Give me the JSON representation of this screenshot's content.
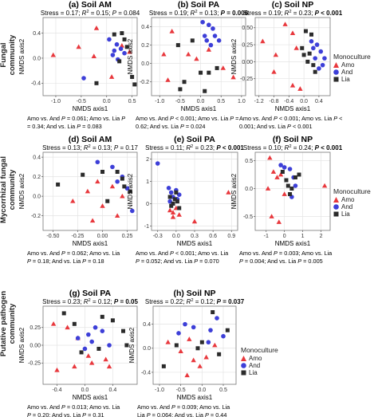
{
  "figure": {
    "row_labels": [
      "Fungal community",
      "Mycorrhizal fungal community",
      "Putative pathogen community"
    ],
    "legend": {
      "title": "Monoculture",
      "items": [
        {
          "label": "Amo",
          "color": "#e8383d",
          "shape": "triangle"
        },
        {
          "label": "And",
          "color": "#3d3fd8",
          "shape": "circle"
        },
        {
          "label": "Lia",
          "color": "#2b2b2b",
          "shape": "square"
        }
      ]
    }
  },
  "chart_data": [
    {
      "id": "a",
      "type": "scatter",
      "title": "(a) Soil AM",
      "stats": {
        "pre": "Stress = 0.17; ",
        "rlabel": "R",
        "rsup": "2",
        "rval": " = 0.15; ",
        "plabel": "P",
        "pval": " = 0.084",
        "pbold": false
      },
      "xlabel": "NMDS axis1",
      "ylabel": "NMDS axis2",
      "xlim": [
        -1.25,
        0.6
      ],
      "ylim": [
        -0.6,
        0.65
      ],
      "xticks": [
        -1.0,
        -0.5,
        0.0,
        0.5
      ],
      "xticklabels": [
        "-1.0",
        "-0.5",
        "0.0",
        "0.5"
      ],
      "yticks": [
        -0.4,
        0.0,
        0.4
      ],
      "yticklabels": [
        "-0.4",
        "0.0",
        "0.4"
      ],
      "note": [
        "Amo vs. And P = 0.061; Amo vs. Lia P",
        "= 0.34; And vs. Lia P = 0.083"
      ],
      "series": [
        {
          "name": "Amo",
          "x": [
            -1.05,
            -0.55,
            -0.2,
            0.3,
            -0.25,
            0.45,
            0.1
          ],
          "y": [
            0.05,
            0.18,
            0.48,
            0.2,
            0.03,
            0.1,
            -0.3
          ]
        },
        {
          "name": "And",
          "x": [
            0.05,
            0.2,
            0.28,
            0.15,
            0.35,
            0.22,
            -0.45,
            0.12
          ],
          "y": [
            0.3,
            0.22,
            0.15,
            0.12,
            0.08,
            -0.02,
            -0.32,
            0.05
          ]
        },
        {
          "name": "Lia",
          "x": [
            0.15,
            0.3,
            0.35,
            0.4,
            0.25,
            0.5,
            -0.2,
            0.55
          ],
          "y": [
            0.38,
            0.4,
            0.3,
            0.18,
            -0.05,
            -0.3,
            -0.4,
            -0.42
          ]
        }
      ]
    },
    {
      "id": "b",
      "type": "scatter",
      "title": "(b) Soil PA",
      "stats": {
        "pre": "Stress = 0.19; ",
        "rlabel": "R",
        "rsup": "2",
        "rval": " = 0.13; ",
        "plabel": "P",
        "pval": " = 0.006",
        "pbold": true
      },
      "xlabel": "NMDS axis1",
      "ylabel": "NMDS axis2",
      "xlim": [
        -1.2,
        1.1
      ],
      "ylim": [
        -0.35,
        0.5
      ],
      "xticks": [
        -1.0,
        -0.5,
        0.0,
        0.5,
        1.0
      ],
      "xticklabels": [
        "-1.0",
        "-0.5",
        "0.0",
        "0.5",
        "1.0"
      ],
      "yticks": [
        -0.2,
        0.0,
        0.2,
        0.4
      ],
      "yticklabels": [
        "-0.2",
        "0.0",
        "0.2",
        "0.4"
      ],
      "note": [
        "Amo vs. And P < 0.001; Amo vs. Lia P =",
        "0.62; And vs. Lia P = 0.024"
      ],
      "series": [
        {
          "name": "Amo",
          "x": [
            -0.7,
            -0.9,
            -0.3,
            -0.1,
            0.2,
            0.55,
            0.8,
            -0.8
          ],
          "y": [
            0.35,
            0.1,
            0.1,
            0.05,
            0.15,
            -0.05,
            -0.15,
            -0.18
          ]
        },
        {
          "name": "And",
          "x": [
            0.05,
            0.2,
            0.3,
            0.35,
            0.1,
            0.45,
            0.25,
            0.15
          ],
          "y": [
            0.45,
            0.42,
            0.38,
            0.3,
            0.3,
            0.25,
            0.2,
            0.25
          ]
        },
        {
          "name": "Lia",
          "x": [
            -0.55,
            -0.2,
            0.0,
            0.2,
            0.4,
            -0.4,
            -0.5,
            0.1
          ],
          "y": [
            0.2,
            0.25,
            -0.1,
            -0.1,
            -0.05,
            -0.2,
            -0.28,
            -0.3
          ]
        }
      ]
    },
    {
      "id": "c",
      "type": "scatter",
      "title": "(c) Soil NP",
      "stats": {
        "pre": "Stress = 0.19; ",
        "rlabel": "R",
        "rsup": "2",
        "rval": " = 0.23; ",
        "plabel": "P",
        "pval": " < 0.001",
        "pbold": true
      },
      "xlabel": "NMDS axis1",
      "ylabel": "NMDS axis2",
      "xlim": [
        -1.3,
        0.7
      ],
      "ylim": [
        -0.5,
        0.65
      ],
      "xticks": [
        -1.2,
        -0.8,
        -0.4,
        0.0,
        0.4
      ],
      "xticklabels": [
        "-1.2",
        "-0.8",
        "-0.4",
        "0.0",
        "0.4"
      ],
      "yticks": [
        -0.25,
        0.0,
        0.25,
        0.5
      ],
      "yticklabels": [
        "-0.25",
        "0.00",
        "0.25",
        "0.50"
      ],
      "note": [
        "Amo vs. And P < 0.001; Amo vs. Lia P <",
        "0.001; And vs. Lia P < 0.001"
      ],
      "series": [
        {
          "name": "Amo",
          "x": [
            -1.1,
            -0.75,
            -0.5,
            -0.3,
            -0.2,
            -0.8,
            -0.3,
            -0.1
          ],
          "y": [
            0.3,
            0.1,
            0.55,
            0.42,
            0.2,
            -0.15,
            -0.35,
            -0.4
          ]
        },
        {
          "name": "And",
          "x": [
            0.2,
            0.35,
            0.45,
            0.3,
            0.55,
            0.4,
            0.25,
            0.5
          ],
          "y": [
            0.3,
            0.25,
            0.15,
            0.05,
            0.05,
            -0.1,
            0.2,
            -0.05
          ]
        },
        {
          "name": "Lia",
          "x": [
            0.05,
            0.2,
            -0.05,
            0.0,
            0.15,
            0.25,
            0.1,
            0.3
          ],
          "y": [
            0.45,
            0.4,
            0.2,
            0.1,
            0.12,
            -0.05,
            0.0,
            -0.15
          ]
        }
      ]
    },
    {
      "id": "d",
      "type": "scatter",
      "title": "(d) Soil AM",
      "stats": {
        "pre": "Stress = 0.13; ",
        "rlabel": "R",
        "rsup": "2",
        "rval": " = 0.13; ",
        "plabel": "P",
        "pval": " = 0.17",
        "pbold": false
      },
      "xlabel": "NMDS axis1",
      "ylabel": "NMDS axis2",
      "xlim": [
        -0.6,
        0.35
      ],
      "ylim": [
        -0.35,
        0.45
      ],
      "xticks": [
        -0.5,
        -0.25,
        0.0,
        0.25
      ],
      "xticklabels": [
        "-0.50",
        "-0.25",
        "0.00",
        "0.25"
      ],
      "yticks": [
        -0.2,
        0.0,
        0.2,
        0.4
      ],
      "yticklabels": [
        "-0.2",
        "0.0",
        "0.2",
        "0.4"
      ],
      "note": [
        "Amo vs. And P = 0.062; Amo vs. Lia",
        "P = 0.18; And vs. Lia P = 0.18"
      ],
      "series": [
        {
          "name": "Amo",
          "x": [
            -0.3,
            -0.15,
            -0.05,
            0.1,
            0.2,
            0.0,
            0.15,
            -0.1
          ],
          "y": [
            -0.05,
            0.05,
            0.15,
            0.1,
            0.0,
            -0.1,
            -0.2,
            -0.25
          ]
        },
        {
          "name": "And",
          "x": [
            -0.05,
            0.1,
            0.2,
            0.15,
            0.25,
            0.3
          ],
          "y": [
            0.35,
            0.3,
            0.2,
            0.15,
            0.08,
            -0.15
          ]
        },
        {
          "name": "Lia",
          "x": [
            -0.45,
            -0.2,
            0.0,
            0.15,
            0.2,
            0.22,
            0.28,
            0.05
          ],
          "y": [
            0.12,
            0.22,
            0.25,
            0.25,
            0.18,
            0.1,
            0.05,
            -0.05
          ]
        }
      ]
    },
    {
      "id": "e",
      "type": "scatter",
      "title": "(e) Soil PA",
      "stats": {
        "pre": "Stress = 0.11; ",
        "rlabel": "R",
        "rsup": "2",
        "rval": " = 0.23; ",
        "plabel": "P",
        "pval": " < 0.001",
        "pbold": true
      },
      "xlabel": "NMDS axis1",
      "ylabel": "NMDS axis2",
      "xlim": [
        -0.4,
        1.0
      ],
      "ylim": [
        -1.2,
        2.3
      ],
      "xticks": [
        -0.3,
        0.0,
        0.3,
        0.6,
        0.9
      ],
      "xticklabels": [
        "-0.3",
        "0.0",
        "0.3",
        "0.6",
        "0.9"
      ],
      "yticks": [
        -1,
        0,
        1,
        2
      ],
      "yticklabels": [
        "-1",
        "0",
        "1",
        "2"
      ],
      "note": [
        "Amo vs. And P < 0.001; Amo vs. Lia",
        "P = 0.052; And vs. Lia P = 0.070"
      ],
      "series": [
        {
          "name": "Amo",
          "x": [
            -0.1,
            -0.05,
            0.0,
            0.05,
            0.3,
            0.85,
            -0.05
          ],
          "y": [
            -0.3,
            -0.6,
            -0.2,
            -0.5,
            -0.8,
            0.5,
            -0.4
          ]
        },
        {
          "name": "And",
          "x": [
            -0.12,
            -0.08,
            -0.05,
            0.0,
            0.02,
            -0.1,
            0.05,
            -0.3
          ],
          "y": [
            0.7,
            0.5,
            0.3,
            0.6,
            0.2,
            0.1,
            0.4,
            1.8
          ]
        },
        {
          "name": "Lia",
          "x": [
            -0.1,
            -0.05,
            0.0,
            0.02,
            -0.08,
            0.05,
            -0.02
          ],
          "y": [
            0.3,
            0.0,
            0.5,
            0.1,
            -0.1,
            -0.2,
            0.2
          ]
        }
      ]
    },
    {
      "id": "f",
      "type": "scatter",
      "title": "(f) Soil NP",
      "stats": {
        "pre": "Stress = 0.10; ",
        "rlabel": "R",
        "rsup": "2",
        "rval": " = 0.24; ",
        "plabel": "P",
        "pval": " < 0.001",
        "pbold": true
      },
      "xlabel": "NMDS axis1",
      "ylabel": "NMDS axis2",
      "xlim": [
        -1.6,
        2.5
      ],
      "ylim": [
        -0.75,
        0.65
      ],
      "xticks": [
        -1,
        0,
        1,
        2
      ],
      "xticklabels": [
        "-1",
        "0",
        "1",
        "2"
      ],
      "yticks": [
        -0.5,
        0.0,
        0.5
      ],
      "yticklabels": [
        "-0.5",
        "0.0",
        "0.5"
      ],
      "note": [
        "Amo vs. And P = 0.003; Amo vs. Lia",
        "P = 0.004; And vs. Lia P = 0.005"
      ],
      "series": [
        {
          "name": "Amo",
          "x": [
            -0.8,
            -0.6,
            -0.4,
            -0.2,
            -0.9,
            0.0,
            2.2,
            -0.7,
            -0.3
          ],
          "y": [
            0.55,
            0.3,
            0.2,
            0.25,
            0.0,
            -0.1,
            0.05,
            -0.5,
            -0.6
          ]
        },
        {
          "name": "And",
          "x": [
            -0.2,
            0.0,
            0.3,
            0.5,
            0.6,
            0.4
          ],
          "y": [
            0.42,
            0.38,
            0.35,
            0.2,
            0.05,
            -0.15
          ]
        },
        {
          "name": "Lia",
          "x": [
            -0.1,
            0.1,
            0.2,
            0.4,
            0.6,
            0.8,
            0.3
          ],
          "y": [
            0.3,
            0.15,
            0.05,
            0.0,
            0.2,
            0.25,
            -0.1
          ]
        }
      ]
    },
    {
      "id": "g",
      "type": "scatter",
      "title": "(g) Soil PA",
      "stats": {
        "pre": "Stress = 0.23; ",
        "rlabel": "R",
        "rsup": "2",
        "rval": " = 0.12; ",
        "plabel": "P",
        "pval": " = 0.05",
        "pbold": true
      },
      "xlabel": "NMDS axis1",
      "ylabel": "NMDS axis2",
      "xlim": [
        -0.6,
        0.75
      ],
      "ylim": [
        -0.55,
        0.55
      ],
      "xticks": [
        -0.4,
        0.0,
        0.4
      ],
      "xticklabels": [
        "-0.4",
        "0.0",
        "0.4"
      ],
      "yticks": [
        -0.25,
        0.0,
        0.25
      ],
      "yticklabels": [
        "-0.25",
        "0.00",
        "0.25"
      ],
      "note": [
        "Amo vs. And P = 0.013; Amo vs. Lia",
        "P = 0.20; And vs. Lia P = 0.31"
      ],
      "series": [
        {
          "name": "Amo",
          "x": [
            -0.45,
            -0.25,
            -0.1,
            0.05,
            0.3,
            -0.4,
            -0.15,
            0.1,
            0.35
          ],
          "y": [
            0.3,
            0.25,
            0.1,
            -0.15,
            -0.2,
            -0.35,
            -0.3,
            -0.25,
            -0.3
          ]
        },
        {
          "name": "And",
          "x": [
            -0.1,
            0.05,
            0.15,
            0.25,
            0.1,
            0.35,
            0.0
          ],
          "y": [
            0.1,
            0.15,
            0.25,
            0.2,
            0.05,
            0.0,
            -0.05
          ]
        },
        {
          "name": "Lia",
          "x": [
            -0.3,
            -0.15,
            0.25,
            0.4,
            0.55,
            0.6,
            -0.05,
            0.2
          ],
          "y": [
            0.45,
            0.3,
            0.4,
            0.35,
            0.2,
            0.0,
            -0.1,
            -0.05
          ]
        }
      ]
    },
    {
      "id": "h",
      "type": "scatter",
      "title": "(h) Soil NP",
      "stats": {
        "pre": "Stress = 0.22; ",
        "rlabel": "R",
        "rsup": "2",
        "rval": " = 0.12; ",
        "plabel": "P",
        "pval": " = 0.037",
        "pbold": true
      },
      "xlabel": "NMDS axis1",
      "ylabel": "NMDS axis2",
      "xlim": [
        -1.15,
        0.8
      ],
      "ylim": [
        -0.6,
        0.7
      ],
      "xticks": [
        -1.0,
        -0.5,
        0.0,
        0.5
      ],
      "xticklabels": [
        "-1.0",
        "-0.5",
        "0.0",
        "0.5"
      ],
      "yticks": [
        -0.4,
        0.0,
        0.4
      ],
      "yticklabels": [
        "-0.4",
        "0.0",
        "0.4"
      ],
      "note": [
        "Amo vs. And P = 0.009; Amo vs. Lia",
        "Lia P = 0.064; And vs. Lia P = 0.44"
      ],
      "series": [
        {
          "name": "Amo",
          "x": [
            -0.8,
            -0.5,
            -0.3,
            -0.2,
            -0.05,
            0.1,
            -0.35,
            0.3
          ],
          "y": [
            0.1,
            -0.05,
            0.15,
            -0.2,
            -0.3,
            -0.15,
            -0.45,
            0.05
          ]
        },
        {
          "name": "And",
          "x": [
            -0.4,
            -0.2,
            0.2,
            0.35,
            0.5,
            -0.55,
            0.15
          ],
          "y": [
            0.4,
            0.35,
            0.3,
            0.5,
            0.2,
            0.25,
            0.1
          ]
        },
        {
          "name": "Lia",
          "x": [
            -0.9,
            -0.6,
            -0.1,
            0.25,
            0.6,
            0.4,
            0.0
          ],
          "y": [
            -0.3,
            0.05,
            0.0,
            0.6,
            0.3,
            -0.1,
            0.1
          ]
        }
      ]
    }
  ]
}
